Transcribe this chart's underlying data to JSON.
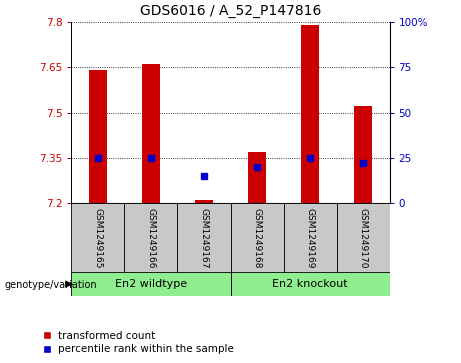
{
  "title": "GDS6016 / A_52_P147816",
  "samples": [
    "GSM1249165",
    "GSM1249166",
    "GSM1249167",
    "GSM1249168",
    "GSM1249169",
    "GSM1249170"
  ],
  "red_values": [
    7.64,
    7.66,
    7.21,
    7.37,
    7.79,
    7.52
  ],
  "blue_values": [
    25,
    25,
    15,
    20,
    25,
    22
  ],
  "ymin": 7.2,
  "ymax": 7.8,
  "y_ticks": [
    7.2,
    7.35,
    7.5,
    7.65,
    7.8
  ],
  "y2min": 0,
  "y2max": 100,
  "y2_ticks": [
    0,
    25,
    50,
    75,
    100
  ],
  "y2_ticklabels": [
    "0",
    "25",
    "50",
    "75",
    "100%"
  ],
  "group1_label": "En2 wildtype",
  "group2_label": "En2 knockout",
  "group1_indices": [
    0,
    1,
    2
  ],
  "group2_indices": [
    3,
    4,
    5
  ],
  "genotype_label": "genotype/variation",
  "legend_red": "transformed count",
  "legend_blue": "percentile rank within the sample",
  "bar_color": "#cc0000",
  "dot_color": "#0000cc",
  "bg_color": "#c8c8c8",
  "group_bg_color": "#90ee90",
  "bar_width": 0.35,
  "title_fontsize": 10,
  "tick_fontsize": 7.5,
  "label_fontsize": 7,
  "legend_fontsize": 7.5
}
